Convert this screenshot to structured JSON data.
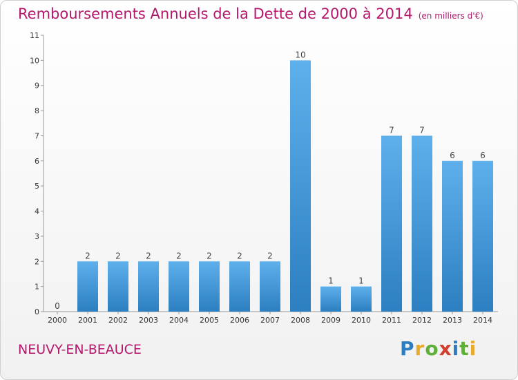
{
  "header": {
    "title": "Remboursements Annuels de la Dette de 2000 à 2014",
    "subtitle": "(en milliers d'€)"
  },
  "footer": {
    "place": "NEUVY-EN-BEAUCE",
    "logo": [
      "P",
      "r",
      "o",
      "x",
      "i",
      "t",
      "i"
    ],
    "logo_colors": [
      "#2e7dc1",
      "#e9a92a",
      "#5fae3a",
      "#d23f2f",
      "#2e7dc1",
      "#5fae3a",
      "#e9a92a"
    ]
  },
  "chart_data": {
    "type": "bar",
    "categories": [
      "2000",
      "2001",
      "2002",
      "2003",
      "2004",
      "2005",
      "2006",
      "2007",
      "2008",
      "2009",
      "2010",
      "2011",
      "2012",
      "2013",
      "2014"
    ],
    "values": [
      0,
      2,
      2,
      2,
      2,
      2,
      2,
      2,
      10,
      1,
      1,
      7,
      7,
      6,
      6
    ],
    "ylim": [
      0,
      11
    ],
    "yticks": [
      0,
      1,
      2,
      3,
      4,
      5,
      6,
      7,
      8,
      9,
      10,
      11
    ],
    "grid": false,
    "bar_color": "#4a9fe0"
  }
}
